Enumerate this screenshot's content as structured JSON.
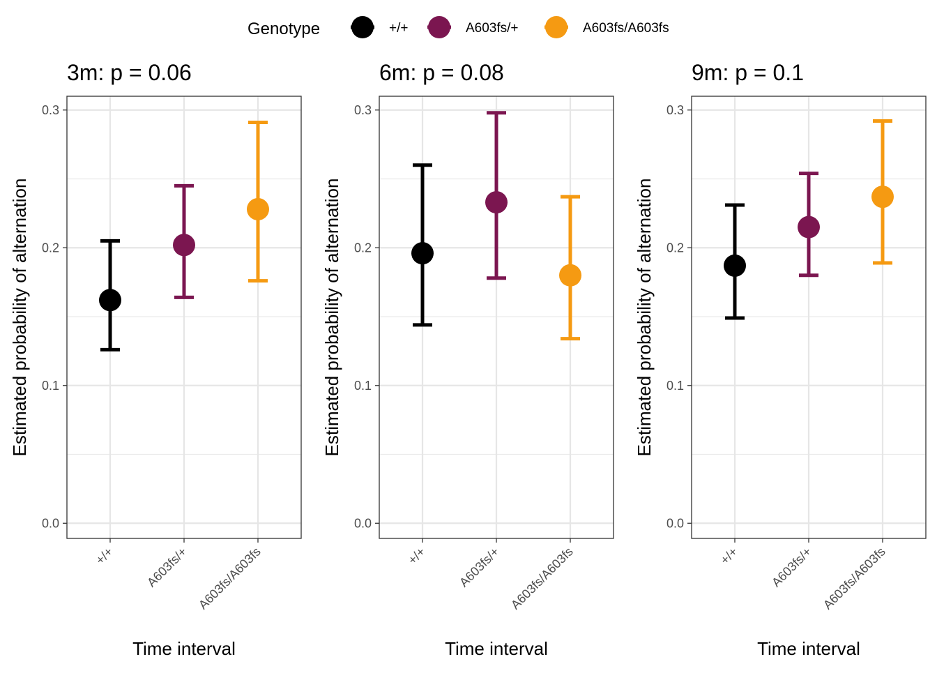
{
  "legend": {
    "title": "Genotype",
    "position": "top",
    "items": [
      {
        "label": "+/+",
        "color": "#000000"
      },
      {
        "label": "A603fs/+",
        "color": "#7B1650"
      },
      {
        "label": "A603fs/A603fs",
        "color": "#F59A12"
      }
    ]
  },
  "chart_data": [
    {
      "type": "scatter",
      "title": "3m: p = 0.06",
      "xlabel": "Time interval",
      "ylabel": "Estimated probability of alternation",
      "categories": [
        "+/+",
        "A603fs/+",
        "A603fs/A603fs"
      ],
      "y_ticks": [
        "0.0",
        "0.1",
        "0.2",
        "0.3"
      ],
      "ylim": [
        -0.011,
        0.31
      ],
      "grid": true,
      "points": [
        {
          "category": "+/+",
          "estimate": 0.162,
          "lower": 0.126,
          "upper": 0.205,
          "color": "#000000"
        },
        {
          "category": "A603fs/+",
          "estimate": 0.202,
          "lower": 0.164,
          "upper": 0.245,
          "color": "#7B1650"
        },
        {
          "category": "A603fs/A603fs",
          "estimate": 0.228,
          "lower": 0.176,
          "upper": 0.291,
          "color": "#F59A12"
        }
      ]
    },
    {
      "type": "scatter",
      "title": "6m: p = 0.08",
      "xlabel": "Time interval",
      "ylabel": "Estimated probability of alternation",
      "categories": [
        "+/+",
        "A603fs/+",
        "A603fs/A603fs"
      ],
      "y_ticks": [
        "0.0",
        "0.1",
        "0.2",
        "0.3"
      ],
      "ylim": [
        -0.011,
        0.31
      ],
      "grid": true,
      "points": [
        {
          "category": "+/+",
          "estimate": 0.196,
          "lower": 0.144,
          "upper": 0.26,
          "color": "#000000"
        },
        {
          "category": "A603fs/+",
          "estimate": 0.233,
          "lower": 0.178,
          "upper": 0.298,
          "color": "#7B1650"
        },
        {
          "category": "A603fs/A603fs",
          "estimate": 0.18,
          "lower": 0.134,
          "upper": 0.237,
          "color": "#F59A12"
        }
      ]
    },
    {
      "type": "scatter",
      "title": "9m: p = 0.1",
      "xlabel": "Time interval",
      "ylabel": "Estimated probability of alternation",
      "categories": [
        "+/+",
        "A603fs/+",
        "A603fs/A603fs"
      ],
      "y_ticks": [
        "0.0",
        "0.1",
        "0.2",
        "0.3"
      ],
      "ylim": [
        -0.011,
        0.31
      ],
      "grid": true,
      "points": [
        {
          "category": "+/+",
          "estimate": 0.187,
          "lower": 0.149,
          "upper": 0.231,
          "color": "#000000"
        },
        {
          "category": "A603fs/+",
          "estimate": 0.215,
          "lower": 0.18,
          "upper": 0.254,
          "color": "#7B1650"
        },
        {
          "category": "A603fs/A603fs",
          "estimate": 0.237,
          "lower": 0.189,
          "upper": 0.292,
          "color": "#F59A12"
        }
      ]
    }
  ]
}
